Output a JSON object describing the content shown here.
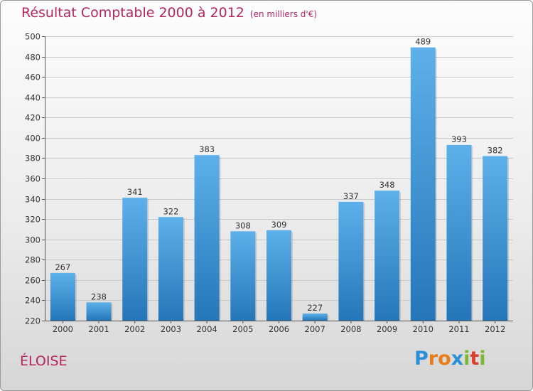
{
  "header": {
    "title": "Résultat Comptable 2000 à 2012",
    "subtitle": "(en milliers d'€)"
  },
  "footer": {
    "town": "ÉLOISE",
    "logo": [
      "P",
      "r",
      "o",
      "x",
      "i",
      "t",
      "i"
    ]
  },
  "colors": {
    "accent": "#b5265e",
    "bar_top": "#5eb0ea",
    "bar_bottom": "#2576b8",
    "logo": [
      "#2a8fd6",
      "#e87e1a",
      "#e87e1a",
      "#2a8fd6",
      "#7cb833",
      "#d93d2b",
      "#7cb833"
    ]
  },
  "chart_data": {
    "type": "bar",
    "title": "Résultat Comptable 2000 à 2012",
    "subtitle": "(en milliers d'€)",
    "categories": [
      "2000",
      "2001",
      "2002",
      "2003",
      "2004",
      "2005",
      "2006",
      "2007",
      "2008",
      "2009",
      "2010",
      "2011",
      "2012"
    ],
    "values": [
      267,
      238,
      341,
      322,
      383,
      308,
      309,
      227,
      337,
      348,
      489,
      393,
      382
    ],
    "ylim": [
      220,
      500
    ],
    "yticks": [
      220,
      240,
      260,
      280,
      300,
      320,
      340,
      360,
      380,
      400,
      420,
      440,
      460,
      480,
      500
    ],
    "grid": true,
    "xlabel": "",
    "ylabel": ""
  }
}
